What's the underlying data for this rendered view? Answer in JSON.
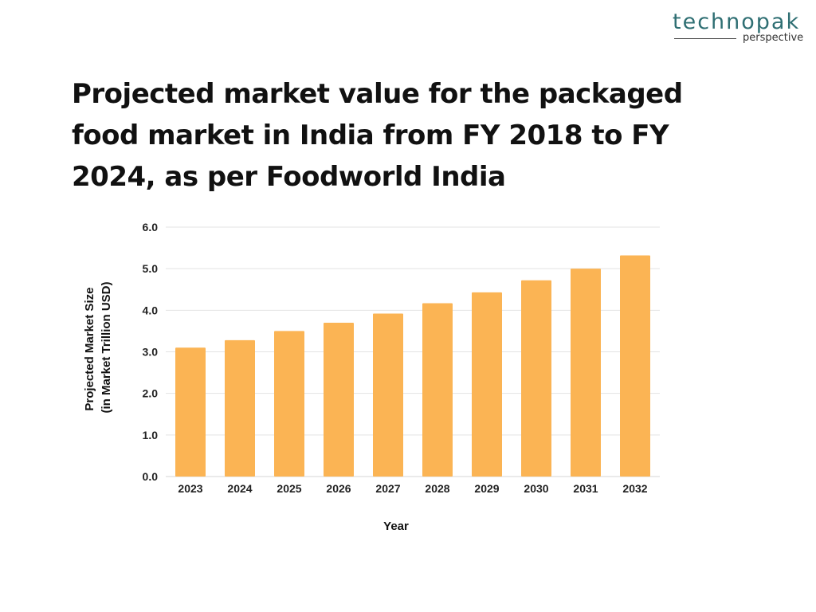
{
  "logo": {
    "name": "technopak",
    "tagline": "perspective",
    "color": "#2f6f73"
  },
  "title": "Projected market value for the packaged food market in India from FY 2018 to FY 2024, as per Foodworld India",
  "colors": {
    "bar": "#fbb454",
    "grid": "#e3e3e3",
    "baseline": "#d6d6d6",
    "text": "#222222"
  },
  "chart_data": {
    "type": "bar",
    "title": "Projected market value for the packaged food market in India from FY 2018 to FY 2024, as per Foodworld India",
    "xlabel": "Year",
    "ylabel_lines": [
      "Projected Market Size",
      "(in Market  Trillion USD)"
    ],
    "categories": [
      "2023",
      "2024",
      "2025",
      "2026",
      "2027",
      "2028",
      "2029",
      "2030",
      "2031",
      "2032"
    ],
    "values": [
      3.1,
      3.28,
      3.5,
      3.7,
      3.92,
      4.17,
      4.43,
      4.72,
      5.0,
      5.32
    ],
    "yticks": [
      "0.0",
      "1.0",
      "2.0",
      "3.0",
      "4.0",
      "5.0",
      "6.0"
    ],
    "ylim": [
      0,
      6
    ],
    "grid": true,
    "legend": "none"
  }
}
